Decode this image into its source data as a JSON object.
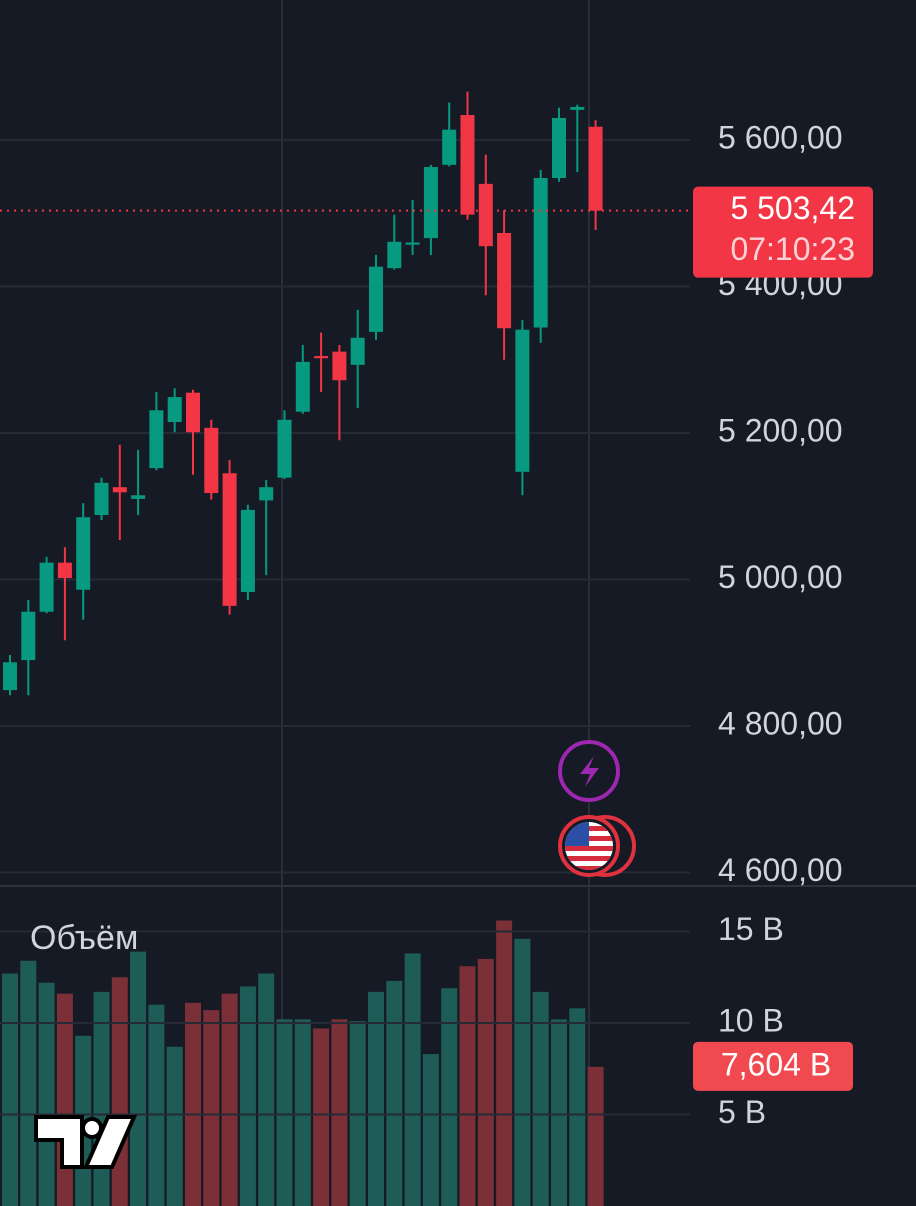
{
  "chart_data": [
    {
      "type": "candlestick",
      "open": [
        4849,
        4890,
        4956,
        5023,
        4986,
        5088,
        5126,
        5110,
        5152,
        5215,
        5255,
        5207,
        5145,
        4983,
        5108,
        5139,
        5229,
        5305,
        5311,
        5293,
        5338,
        5425,
        5457,
        5466,
        5566,
        5634,
        5540,
        5473,
        5147,
        5344,
        5548,
        5641,
        5618
      ],
      "high": [
        4897,
        4972,
        5031,
        5044,
        5104,
        5139,
        5184,
        5177,
        5256,
        5261,
        5259,
        5218,
        5163,
        5102,
        5136,
        5231,
        5320,
        5337,
        5320,
        5368,
        5443,
        5498,
        5518,
        5566,
        5651,
        5666,
        5580,
        5504,
        5354,
        5559,
        5644,
        5648,
        5627
      ],
      "low": [
        4842,
        4842,
        4954,
        4917,
        4945,
        5081,
        5054,
        5088,
        5149,
        5201,
        5143,
        5109,
        4952,
        4972,
        5006,
        5137,
        5226,
        5256,
        5190,
        5234,
        5327,
        5423,
        5443,
        5443,
        5564,
        5491,
        5388,
        5300,
        5115,
        5323,
        5543,
        5556,
        5477
      ],
      "close": [
        4887,
        4956,
        5023,
        5002,
        5085,
        5132,
        5119,
        5115,
        5231,
        5249,
        5201,
        5118,
        4964,
        5095,
        5126,
        5218,
        5297,
        5302,
        5272,
        5330,
        5427,
        5461,
        5460,
        5563,
        5614,
        5498,
        5455,
        5343,
        5341,
        5548,
        5630,
        5645,
        5503.42
      ],
      "up_color": "#089981",
      "down_color": "#f23645",
      "ylim": [
        4583,
        5791
      ],
      "yticks": [
        {
          "value": 4600,
          "label": "4 600,00"
        },
        {
          "value": 4800,
          "label": "4 800,00"
        },
        {
          "value": 5000,
          "label": "5 000,00"
        },
        {
          "value": 5200,
          "label": "5 200,00"
        },
        {
          "value": 5400,
          "label": "5 400,00"
        },
        {
          "value": 5600,
          "label": "5 600,00"
        }
      ],
      "grid": true,
      "last_value_label": "5 503,42",
      "countdown": "07:10:23"
    },
    {
      "type": "bar",
      "title": "Объём",
      "values": [
        12.7,
        13.4,
        12.2,
        11.6,
        9.3,
        11.7,
        12.5,
        13.9,
        11.0,
        8.7,
        11.1,
        10.7,
        11.6,
        12.0,
        12.7,
        10.2,
        10.2,
        9.7,
        10.2,
        10.1,
        11.7,
        12.3,
        13.8,
        8.3,
        11.9,
        13.1,
        13.5,
        15.6,
        14.6,
        11.7,
        10.2,
        10.8,
        7.604
      ],
      "up_color": "#1e5c58",
      "down_color": "#7b2f37",
      "ylim": [
        0,
        17.43
      ],
      "yticks": [
        {
          "value": 5,
          "label": "5 B"
        },
        {
          "value": 10,
          "label": "10 B"
        },
        {
          "value": 15,
          "label": "15 B"
        }
      ],
      "grid": true,
      "last_value_label": "7,604 B"
    }
  ]
}
